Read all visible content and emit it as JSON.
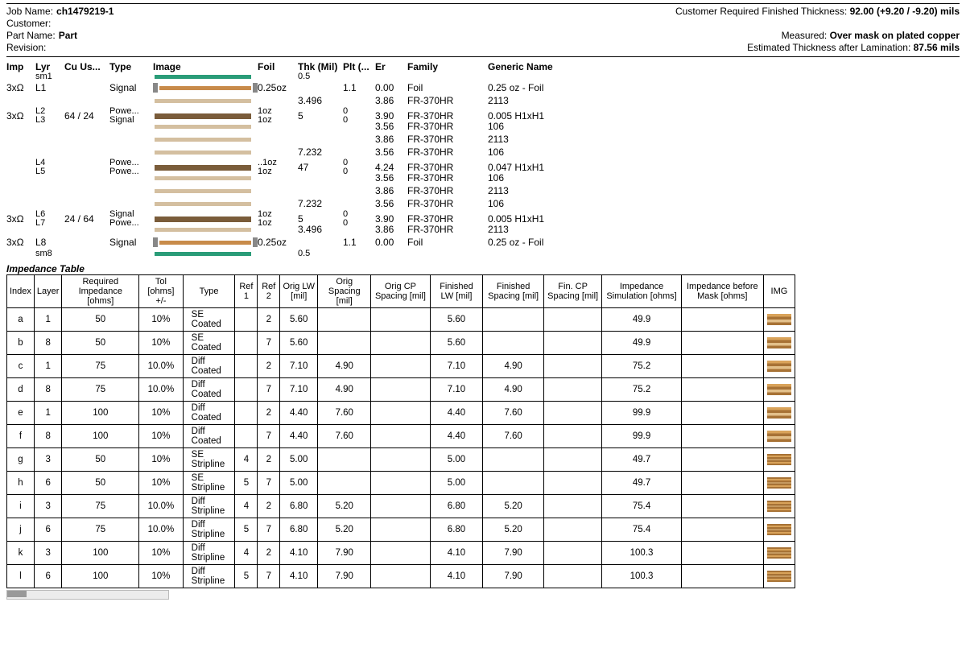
{
  "header": {
    "jobname_label": "Job Name:",
    "jobname": "ch1479219-1",
    "customer_label": "Customer:",
    "customer": "",
    "partname_label": "Part Name:",
    "partname": "Part",
    "revision_label": "Revision:",
    "revision": "",
    "crft_label": "Customer Required Finished Thickness:",
    "crft": "92.00 (+9.20 / -9.20) mils",
    "measured_label": "Measured:",
    "measured": "Over mask on plated copper",
    "etal_label": "Estimated Thickness after Lamination:",
    "etal": "87.56 mils"
  },
  "stackup_cols": {
    "imp": "Imp",
    "lyr": "Lyr",
    "cu": "Cu Us...",
    "type": "Type",
    "image": "Image",
    "foil": "Foil",
    "thk": "Thk (Mil)",
    "plt": "Plt (...",
    "er": "Er",
    "family": "Family",
    "gname": "Generic Name"
  },
  "stackup": [
    {
      "imp": "",
      "lyr": "sm1",
      "cu": "",
      "type": "",
      "foil": "",
      "thk": "0.5",
      "plt": "",
      "er": "",
      "family": "",
      "gname": "",
      "barcls": "bar-green",
      "sm": true
    },
    {
      "imp": "3xΩ",
      "lyr": "L1",
      "cu": "",
      "type": "Signal",
      "foil": "0.25oz",
      "thk": "",
      "plt": "1.1",
      "er": "0.00",
      "family": "Foil",
      "gname": "0.25 oz - Foil",
      "barcls": "bar-copper",
      "caps": true
    },
    {
      "imp": "",
      "lyr": "",
      "cu": "",
      "type": "",
      "foil": "",
      "thk": "3.496",
      "plt": "",
      "er": "3.86",
      "family": "FR-370HR",
      "gname": "2113",
      "barcls": "bar-tan"
    },
    {
      "imp": "3xΩ",
      "lyr": "L2|L3",
      "cu": "64 / 24",
      "type": "Powe...|Signal",
      "foil": "1oz|1oz",
      "thk": "5",
      "plt": "0|0",
      "er": "3.90",
      "family": "FR-370HR",
      "gname": "0.005 H1xH1",
      "barcls": "bar-core",
      "dual": true
    },
    {
      "imp": "",
      "lyr": "",
      "cu": "",
      "type": "",
      "foil": "",
      "thk": "",
      "plt": "",
      "er": "3.56",
      "family": "FR-370HR",
      "gname": "106",
      "barcls": "bar-tan"
    },
    {
      "imp": "",
      "lyr": "",
      "cu": "",
      "type": "",
      "foil": "",
      "thk": "",
      "plt": "",
      "er": "3.86",
      "family": "FR-370HR",
      "gname": "2113",
      "barcls": "bar-tan"
    },
    {
      "imp": "",
      "lyr": "",
      "cu": "",
      "type": "",
      "foil": "",
      "thk": "7.232",
      "plt": "",
      "er": "3.56",
      "family": "FR-370HR",
      "gname": "106",
      "barcls": "bar-tan"
    },
    {
      "imp": "",
      "lyr": "L4|L5",
      "cu": "",
      "type": "Powe...|Powe...",
      "foil": "..1oz|1oz",
      "thk": "47",
      "plt": "0|0",
      "er": "4.24",
      "family": "FR-370HR",
      "gname": "0.047 H1xH1",
      "barcls": "bar-core",
      "dual": true
    },
    {
      "imp": "",
      "lyr": "",
      "cu": "",
      "type": "",
      "foil": "",
      "thk": "",
      "plt": "",
      "er": "3.56",
      "family": "FR-370HR",
      "gname": "106",
      "barcls": "bar-tan"
    },
    {
      "imp": "",
      "lyr": "",
      "cu": "",
      "type": "",
      "foil": "",
      "thk": "",
      "plt": "",
      "er": "3.86",
      "family": "FR-370HR",
      "gname": "2113",
      "barcls": "bar-tan"
    },
    {
      "imp": "",
      "lyr": "",
      "cu": "",
      "type": "",
      "foil": "",
      "thk": "7.232",
      "plt": "",
      "er": "3.56",
      "family": "FR-370HR",
      "gname": "106",
      "barcls": "bar-tan"
    },
    {
      "imp": "3xΩ",
      "lyr": "L6|L7",
      "cu": "24 / 64",
      "type": "Signal|Powe...",
      "foil": "1oz|1oz",
      "thk": "5",
      "plt": "0|0",
      "er": "3.90",
      "family": "FR-370HR",
      "gname": "0.005 H1xH1",
      "barcls": "bar-core",
      "dual": true
    },
    {
      "imp": "",
      "lyr": "",
      "cu": "",
      "type": "",
      "foil": "",
      "thk": "3.496",
      "plt": "",
      "er": "3.86",
      "family": "FR-370HR",
      "gname": "2113",
      "barcls": "bar-tan"
    },
    {
      "imp": "3xΩ",
      "lyr": "L8",
      "cu": "",
      "type": "Signal",
      "foil": "0.25oz",
      "thk": "",
      "plt": "1.1",
      "er": "0.00",
      "family": "Foil",
      "gname": "0.25 oz - Foil",
      "barcls": "bar-copper",
      "caps": true
    },
    {
      "imp": "",
      "lyr": "sm8",
      "cu": "",
      "type": "",
      "foil": "",
      "thk": "0.5",
      "plt": "",
      "er": "",
      "family": "",
      "gname": "",
      "barcls": "bar-green",
      "sm": true
    }
  ],
  "imp_title": "Impedance Table",
  "imp_cols": [
    "Index",
    "Layer",
    "Required Impedance [ohms]",
    "Tol [ohms] +/-",
    "Type",
    "Ref 1",
    "Ref 2",
    "Orig LW [mil]",
    "Orig Spacing [mil]",
    "Orig CP Spacing [mil]",
    "Finished LW [mil]",
    "Finished Spacing [mil]",
    "Fin. CP Spacing [mil]",
    "Impedance Simulation [ohms]",
    "Impedance before Mask [ohms]",
    "IMG"
  ],
  "imp_rows": [
    {
      "idx": "a",
      "layer": "1",
      "req": "50",
      "tol": "10%",
      "type": "SE Coated",
      "r1": "",
      "r2": "2",
      "olw": "5.60",
      "osp": "",
      "ocp": "",
      "flw": "5.60",
      "fsp": "",
      "fcp": "",
      "sim": "49.9",
      "bmask": "",
      "strip": false
    },
    {
      "idx": "b",
      "layer": "8",
      "req": "50",
      "tol": "10%",
      "type": "SE Coated",
      "r1": "",
      "r2": "7",
      "olw": "5.60",
      "osp": "",
      "ocp": "",
      "flw": "5.60",
      "fsp": "",
      "fcp": "",
      "sim": "49.9",
      "bmask": "",
      "strip": false
    },
    {
      "idx": "c",
      "layer": "1",
      "req": "75",
      "tol": "10.0%",
      "type": "Diff Coated",
      "r1": "",
      "r2": "2",
      "olw": "7.10",
      "osp": "4.90",
      "ocp": "",
      "flw": "7.10",
      "fsp": "4.90",
      "fcp": "",
      "sim": "75.2",
      "bmask": "",
      "strip": false
    },
    {
      "idx": "d",
      "layer": "8",
      "req": "75",
      "tol": "10.0%",
      "type": "Diff Coated",
      "r1": "",
      "r2": "7",
      "olw": "7.10",
      "osp": "4.90",
      "ocp": "",
      "flw": "7.10",
      "fsp": "4.90",
      "fcp": "",
      "sim": "75.2",
      "bmask": "",
      "strip": false
    },
    {
      "idx": "e",
      "layer": "1",
      "req": "100",
      "tol": "10%",
      "type": "Diff Coated",
      "r1": "",
      "r2": "2",
      "olw": "4.40",
      "osp": "7.60",
      "ocp": "",
      "flw": "4.40",
      "fsp": "7.60",
      "fcp": "",
      "sim": "99.9",
      "bmask": "",
      "strip": false
    },
    {
      "idx": "f",
      "layer": "8",
      "req": "100",
      "tol": "10%",
      "type": "Diff Coated",
      "r1": "",
      "r2": "7",
      "olw": "4.40",
      "osp": "7.60",
      "ocp": "",
      "flw": "4.40",
      "fsp": "7.60",
      "fcp": "",
      "sim": "99.9",
      "bmask": "",
      "strip": false
    },
    {
      "idx": "g",
      "layer": "3",
      "req": "50",
      "tol": "10%",
      "type": "SE Stripline",
      "r1": "4",
      "r2": "2",
      "olw": "5.00",
      "osp": "",
      "ocp": "",
      "flw": "5.00",
      "fsp": "",
      "fcp": "",
      "sim": "49.7",
      "bmask": "",
      "strip": true
    },
    {
      "idx": "h",
      "layer": "6",
      "req": "50",
      "tol": "10%",
      "type": "SE Stripline",
      "r1": "5",
      "r2": "7",
      "olw": "5.00",
      "osp": "",
      "ocp": "",
      "flw": "5.00",
      "fsp": "",
      "fcp": "",
      "sim": "49.7",
      "bmask": "",
      "strip": true
    },
    {
      "idx": "i",
      "layer": "3",
      "req": "75",
      "tol": "10.0%",
      "type": "Diff Stripline",
      "r1": "4",
      "r2": "2",
      "olw": "6.80",
      "osp": "5.20",
      "ocp": "",
      "flw": "6.80",
      "fsp": "5.20",
      "fcp": "",
      "sim": "75.4",
      "bmask": "",
      "strip": true
    },
    {
      "idx": "j",
      "layer": "6",
      "req": "75",
      "tol": "10.0%",
      "type": "Diff Stripline",
      "r1": "5",
      "r2": "7",
      "olw": "6.80",
      "osp": "5.20",
      "ocp": "",
      "flw": "6.80",
      "fsp": "5.20",
      "fcp": "",
      "sim": "75.4",
      "bmask": "",
      "strip": true
    },
    {
      "idx": "k",
      "layer": "3",
      "req": "100",
      "tol": "10%",
      "type": "Diff Stripline",
      "r1": "4",
      "r2": "2",
      "olw": "4.10",
      "osp": "7.90",
      "ocp": "",
      "flw": "4.10",
      "fsp": "7.90",
      "fcp": "",
      "sim": "100.3",
      "bmask": "",
      "strip": true
    },
    {
      "idx": "l",
      "layer": "6",
      "req": "100",
      "tol": "10%",
      "type": "Diff Stripline",
      "r1": "5",
      "r2": "7",
      "olw": "4.10",
      "osp": "7.90",
      "ocp": "",
      "flw": "4.10",
      "fsp": "7.90",
      "fcp": "",
      "sim": "100.3",
      "bmask": "",
      "strip": true
    }
  ],
  "colors": {
    "mask": "#2a9c78",
    "copper": "#c88b4a",
    "core": "#7a5c3a",
    "prepreg": "#d4bfa0",
    "cap": "#888888"
  }
}
